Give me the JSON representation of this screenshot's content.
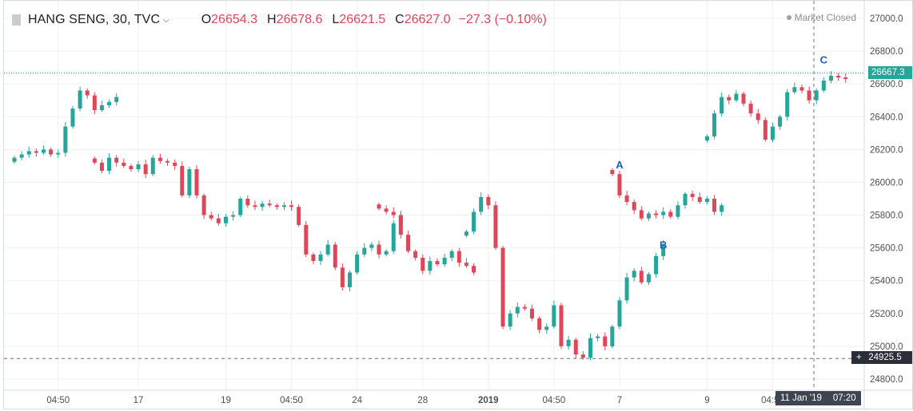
{
  "legend": {
    "symbol": "HANG SENG, 30, TVC",
    "o_label": "O",
    "o_value": "26654.3",
    "h_label": "H",
    "h_value": "26678.6",
    "l_label": "L",
    "l_value": "26621.5",
    "c_label": "C",
    "c_value": "26627.0",
    "change": "−27.3 (−0.10%)"
  },
  "market_status": "Market Closed",
  "last_price_tag": "26667.3",
  "crosshair_price_tag": "24925.5",
  "crosshair_time_tag": {
    "date": "11 Jan '19",
    "time": "07:20"
  },
  "colors": {
    "up": "#26a69a",
    "down": "#e0465a",
    "grid": "#eef0f3",
    "axis_text": "#4a4f55",
    "annotation": "#1f5fbf"
  },
  "chart_data": {
    "type": "candlestick",
    "y_axis": {
      "ticks": [
        "27000.0",
        "26800.0",
        "26600.0",
        "26400.0",
        "26200.0",
        "26000.0",
        "25800.0",
        "25600.0",
        "25400.0",
        "25200.0",
        "25000.0",
        "24800.0"
      ],
      "ylim": [
        24700,
        27100
      ]
    },
    "x_axis": {
      "tick_labels": [
        {
          "label": "04:50",
          "bar": 6
        },
        {
          "label": "17",
          "bar": 17
        },
        {
          "label": "19",
          "bar": 29
        },
        {
          "label": "04:50",
          "bar": 38
        },
        {
          "label": "24",
          "bar": 47
        },
        {
          "label": "28",
          "bar": 56
        },
        {
          "label": "2019",
          "bar": 65,
          "bold": true
        },
        {
          "label": "04:50",
          "bar": 74
        },
        {
          "label": "7",
          "bar": 83
        },
        {
          "label": "9",
          "bar": 95
        },
        {
          "label": "04:50",
          "bar": 104
        }
      ]
    },
    "grid": true,
    "sessions": [
      {
        "start": 0,
        "closes": [
          26150,
          26170,
          26190,
          26180,
          26200,
          26170,
          26180,
          26340,
          26450,
          26560,
          26530,
          26440,
          26470,
          26490,
          26520
        ]
      },
      {
        "start": 11,
        "closes": [
          26120,
          26070,
          26150,
          26120,
          26100,
          26080,
          26110,
          26050,
          26150,
          26130,
          26120,
          26100,
          25920,
          26080,
          25920,
          25800,
          25780,
          25750,
          25790,
          25800,
          25900,
          25860,
          25850,
          25870,
          25860,
          25850,
          25860,
          25850,
          25740,
          25560,
          25520,
          25560,
          25620,
          25480,
          25360,
          25450,
          25560,
          25600,
          25620,
          25560,
          25580,
          25750,
          25800
        ]
      },
      {
        "start": 50,
        "closes": [
          25840,
          25820,
          25800,
          25680,
          25580,
          25540,
          25460,
          25520,
          25500,
          25540,
          25580,
          25510,
          25490,
          25450
        ]
      },
      {
        "start": 62,
        "closes": [
          25700,
          25820,
          25910,
          25860,
          25600,
          25120,
          25200,
          25240,
          25230,
          25170,
          25100,
          25120,
          25250,
          25000,
          25040,
          24950,
          24930,
          25050,
          25060,
          25000,
          25120,
          25280,
          25420,
          25460,
          25390,
          25440,
          25550,
          25620
        ]
      },
      {
        "start": 82,
        "closes": [
          26050,
          25920,
          25880,
          25830,
          25780,
          25810,
          25800,
          25820,
          25790,
          25860,
          25930,
          25910,
          25880,
          25900,
          25820,
          25860
        ]
      },
      {
        "start": 95,
        "closes": [
          26280,
          26420,
          26520,
          26500,
          26540,
          26480,
          26420,
          26380,
          26260,
          26340,
          26400,
          26550,
          26580,
          26560,
          26500,
          26560,
          26620,
          26650,
          26640,
          26630
        ]
      }
    ],
    "annotations": [
      {
        "text": "A",
        "bar": 83,
        "price": 26110
      },
      {
        "text": "B",
        "bar": 89,
        "price": 25620
      },
      {
        "text": "C",
        "bar": 111,
        "price": 26750
      }
    ],
    "last_price": 26667.3,
    "crosshair_price": 24925.5
  }
}
